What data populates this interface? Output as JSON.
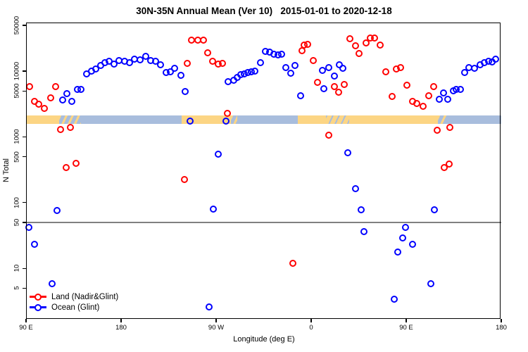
{
  "title": "30N-35N Annual Mean (Ver 10)   2015-01-01 to 2020-12-18",
  "x_axis": {
    "label": "Longitude (deg E)",
    "ticks": [
      {
        "lon": 90,
        "label": "90 E"
      },
      {
        "lon": 180,
        "label": "180"
      },
      {
        "lon": 270,
        "label": "90 W"
      },
      {
        "lon": 360,
        "label": "0"
      },
      {
        "lon": 450,
        "label": "90 E"
      },
      {
        "lon": 540,
        "label": "180"
      }
    ]
  },
  "y_axis": {
    "label": "N Total",
    "ticks": [
      {
        "value": 50000,
        "label": "50000"
      },
      {
        "value": 10000,
        "label": "10000"
      },
      {
        "value": 5000,
        "label": "5000"
      },
      {
        "value": 1000,
        "label": "1000"
      },
      {
        "value": 500,
        "label": "500"
      },
      {
        "value": 100,
        "label": "100"
      },
      {
        "value": 50,
        "label": "50"
      },
      {
        "value": 10,
        "label": "10"
      },
      {
        "value": 5,
        "label": "5"
      }
    ]
  },
  "colors": {
    "land_points": "#ff0000",
    "ocean_points": "#0000ff",
    "band_land": "#fcd584",
    "band_ocean": "#a8bddd",
    "reference_line": "#808080"
  },
  "reference_line_value": 50,
  "chart_data": {
    "type": "scatter",
    "title": "30N-35N Annual Mean (Ver 10)   2015-01-01 to 2020-12-18",
    "xlabel": "Longitude (deg E)",
    "ylabel": "N Total",
    "xlim": [
      90,
      540
    ],
    "ylim": [
      1.7,
      55000
    ],
    "y_log_scale": true,
    "grid": false,
    "legend_position": "bottom-left-inside",
    "land_ocean_band": {
      "description": "map strip showing land (tan) vs ocean (blue) along 30N-35N",
      "value_range": [
        1560,
        2100
      ],
      "segments": [
        {
          "from": 90,
          "to": 121,
          "type": "land"
        },
        {
          "from": 121,
          "to": 142,
          "type": "coast-mixed"
        },
        {
          "from": 142,
          "to": 237,
          "type": "ocean"
        },
        {
          "from": 237,
          "to": 284,
          "type": "land"
        },
        {
          "from": 284,
          "to": 290,
          "type": "coast-mixed"
        },
        {
          "from": 290,
          "to": 347,
          "type": "ocean"
        },
        {
          "from": 347,
          "to": 374,
          "type": "land"
        },
        {
          "from": 374,
          "to": 396,
          "type": "coast-land"
        },
        {
          "from": 396,
          "to": 480,
          "type": "land"
        },
        {
          "from": 480,
          "to": 488,
          "type": "coast-mixed"
        },
        {
          "from": 488,
          "to": 540,
          "type": "ocean"
        }
      ]
    },
    "series": [
      {
        "name": "Land (Nadir&Glint)",
        "color": "#ff0000",
        "points": [
          [
            93.3,
            5900
          ],
          [
            118,
            5900
          ],
          [
            98,
            3450
          ],
          [
            102,
            3120
          ],
          [
            107.3,
            2690
          ],
          [
            113.3,
            3900
          ],
          [
            122.7,
            1280
          ],
          [
            132,
            1380
          ],
          [
            128,
            345
          ],
          [
            137.3,
            400
          ],
          [
            242.7,
            13100
          ],
          [
            246.7,
            29700
          ],
          [
            252.7,
            29700
          ],
          [
            258,
            29700
          ],
          [
            262,
            19000
          ],
          [
            266.7,
            14200
          ],
          [
            272,
            12800
          ],
          [
            276,
            13100
          ],
          [
            280.7,
            2260
          ],
          [
            240,
            226
          ],
          [
            351.3,
            20500
          ],
          [
            353.3,
            25000
          ],
          [
            356.7,
            25600
          ],
          [
            362,
            14500
          ],
          [
            366,
            6730
          ],
          [
            376.7,
            1050
          ],
          [
            382,
            5900
          ],
          [
            386,
            4750
          ],
          [
            391.3,
            6250
          ],
          [
            396.7,
            31200
          ],
          [
            402,
            24400
          ],
          [
            405.3,
            18600
          ],
          [
            412,
            26900
          ],
          [
            416,
            32000
          ],
          [
            420,
            32000
          ],
          [
            425.3,
            25000
          ],
          [
            430.7,
            9750
          ],
          [
            436.7,
            4100
          ],
          [
            440.7,
            10700
          ],
          [
            444.7,
            11300
          ],
          [
            450.7,
            6100
          ],
          [
            456,
            3450
          ],
          [
            460,
            3200
          ],
          [
            466,
            2900
          ],
          [
            471.3,
            4200
          ],
          [
            476,
            5900
          ],
          [
            479.3,
            1250
          ],
          [
            491.3,
            1380
          ],
          [
            486,
            345
          ],
          [
            490.7,
            390
          ],
          [
            342.7,
            12
          ]
        ]
      },
      {
        "name": "Ocean (Glint)",
        "color": "#0000ff",
        "points": [
          [
            124.7,
            3620
          ],
          [
            128.7,
            4530
          ],
          [
            133.3,
            3450
          ],
          [
            138.7,
            5250
          ],
          [
            142,
            5250
          ],
          [
            147.3,
            9060
          ],
          [
            152,
            10000
          ],
          [
            156,
            10700
          ],
          [
            160.7,
            12200
          ],
          [
            164.7,
            13500
          ],
          [
            168.7,
            14200
          ],
          [
            173.3,
            12800
          ],
          [
            178,
            14500
          ],
          [
            183.3,
            14200
          ],
          [
            188,
            13500
          ],
          [
            192.7,
            15200
          ],
          [
            198,
            15000
          ],
          [
            203.3,
            16800
          ],
          [
            208,
            14500
          ],
          [
            212.7,
            14200
          ],
          [
            217.3,
            12500
          ],
          [
            222.7,
            9500
          ],
          [
            226.7,
            9750
          ],
          [
            230.7,
            11000
          ],
          [
            236.7,
            8600
          ],
          [
            240.7,
            4870
          ],
          [
            245.3,
            1720
          ],
          [
            279.3,
            1760
          ],
          [
            272,
            540
          ],
          [
            119.3,
            76
          ],
          [
            267.3,
            80
          ],
          [
            92.7,
            42
          ],
          [
            98,
            23
          ],
          [
            114.7,
            5.8
          ],
          [
            263.3,
            2.6
          ],
          [
            281.3,
            6900
          ],
          [
            286.7,
            7250
          ],
          [
            290,
            8000
          ],
          [
            293.3,
            8850
          ],
          [
            296.7,
            9060
          ],
          [
            300,
            9500
          ],
          [
            303.3,
            9750
          ],
          [
            306.7,
            10000
          ],
          [
            312,
            13500
          ],
          [
            316.7,
            20000
          ],
          [
            320.7,
            19500
          ],
          [
            324.7,
            18100
          ],
          [
            328.7,
            17700
          ],
          [
            332,
            18100
          ],
          [
            336,
            11300
          ],
          [
            340.7,
            9280
          ],
          [
            344.7,
            12200
          ],
          [
            350,
            4200
          ],
          [
            370.7,
            10250
          ],
          [
            372,
            5380
          ],
          [
            376.7,
            11300
          ],
          [
            382,
            8400
          ],
          [
            386.7,
            12500
          ],
          [
            390,
            11000
          ],
          [
            394.7,
            580
          ],
          [
            402,
            164
          ],
          [
            407.3,
            77
          ],
          [
            476.7,
            77
          ],
          [
            449.3,
            42
          ],
          [
            410,
            36
          ],
          [
            446.7,
            29
          ],
          [
            456,
            23
          ],
          [
            442,
            17.7
          ],
          [
            473.3,
            5.8
          ],
          [
            438.7,
            3.4
          ],
          [
            481.3,
            3720
          ],
          [
            485.3,
            4640
          ],
          [
            489.3,
            3720
          ],
          [
            494.7,
            5000
          ],
          [
            497.3,
            5250
          ],
          [
            501.3,
            5250
          ],
          [
            505.3,
            9500
          ],
          [
            509.3,
            11300
          ],
          [
            514.7,
            11000
          ],
          [
            520,
            12500
          ],
          [
            524,
            13500
          ],
          [
            528,
            14200
          ],
          [
            531.3,
            13800
          ],
          [
            534.7,
            15300
          ]
        ]
      }
    ]
  }
}
